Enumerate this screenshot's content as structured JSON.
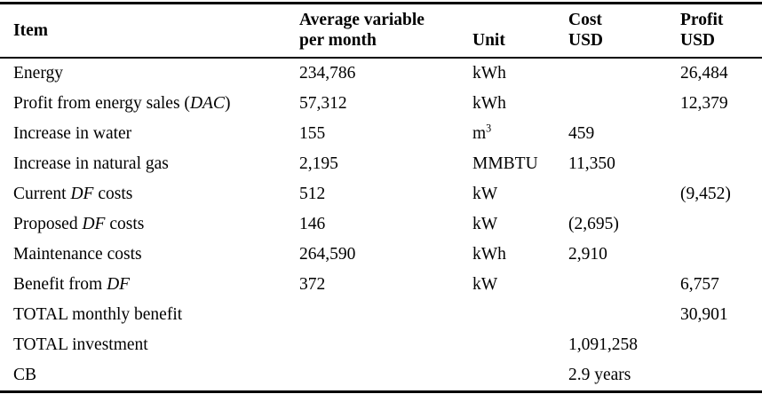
{
  "table": {
    "background": "#ffffff",
    "text_color": "#000000",
    "rule_color": "#000000",
    "columns": [
      {
        "key": "item",
        "label_lines": [
          "Item"
        ]
      },
      {
        "key": "avg",
        "label_lines": [
          "Average variable",
          "per month"
        ]
      },
      {
        "key": "unit",
        "label_lines": [
          "Unit"
        ]
      },
      {
        "key": "cost",
        "label_lines": [
          "Cost",
          "USD"
        ]
      },
      {
        "key": "profit",
        "label_lines": [
          "Profit",
          "USD"
        ]
      }
    ],
    "rows": [
      {
        "item": "Energy",
        "avg": "234,786",
        "unit": "kWh",
        "cost": "",
        "profit": "26,484"
      },
      {
        "item": "Profit from energy sales (*DAC*)",
        "avg": "57,312",
        "unit": "kWh",
        "cost": "",
        "profit": "12,379"
      },
      {
        "item": "Increase in water",
        "avg": "155",
        "unit": "m^3",
        "cost": "459",
        "profit": ""
      },
      {
        "item": "Increase in natural gas",
        "avg": "2,195",
        "unit": "MMBTU",
        "cost": "11,350",
        "profit": ""
      },
      {
        "item": "Current *DF* costs",
        "avg": "512",
        "unit": "kW",
        "cost": "",
        "profit": "(9,452)"
      },
      {
        "item": "Proposed *DF* costs",
        "avg": "146",
        "unit": "kW",
        "cost": "(2,695)",
        "profit": ""
      },
      {
        "item": "Maintenance costs",
        "avg": "264,590",
        "unit": "kWh",
        "cost": "2,910",
        "profit": ""
      },
      {
        "item": "Benefit from *DF*",
        "avg": "372",
        "unit": "kW",
        "cost": "",
        "profit": "6,757"
      },
      {
        "item": "TOTAL monthly benefit",
        "avg": "",
        "unit": "",
        "cost": "",
        "profit": "30,901"
      },
      {
        "item": "TOTAL investment",
        "avg": "",
        "unit": "",
        "cost": "1,091,258",
        "profit": ""
      },
      {
        "item": "CB",
        "avg": "",
        "unit": "",
        "cost": "2.9 years",
        "profit": ""
      }
    ]
  }
}
